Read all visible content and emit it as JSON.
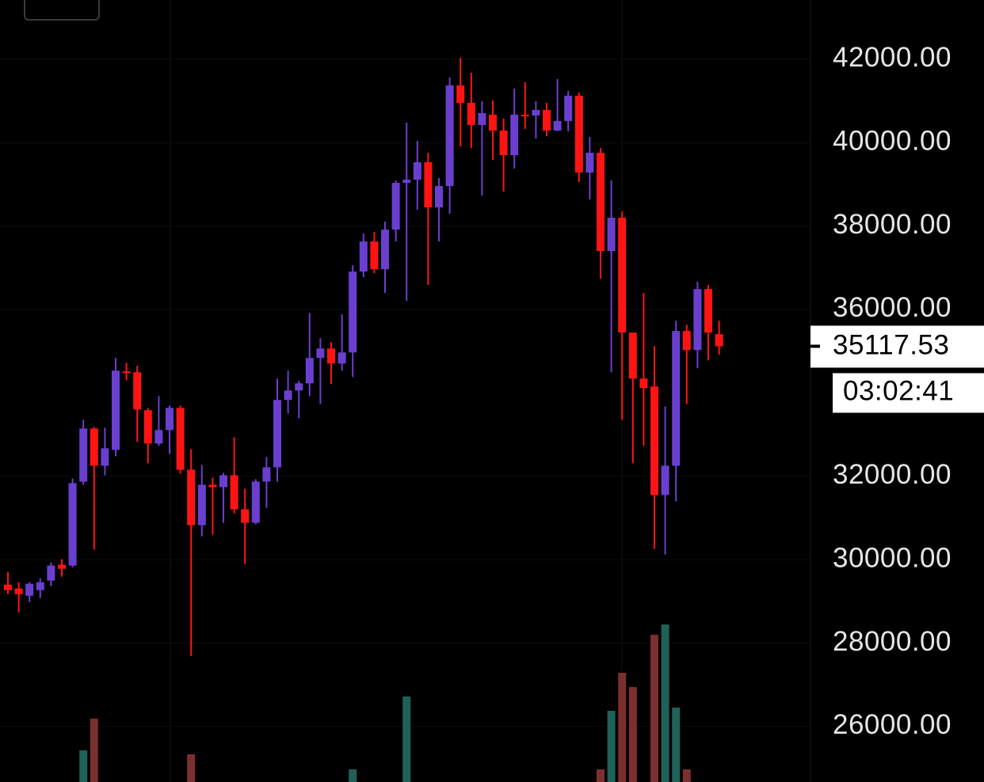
{
  "chart_data": {
    "type": "candlestick",
    "ylim": [
      24670,
      43420
    ],
    "yticks": [
      {
        "value": 26000,
        "label": "26000.00"
      },
      {
        "value": 28000,
        "label": "28000.00"
      },
      {
        "value": 30000,
        "label": "30000.00"
      },
      {
        "value": 32000,
        "label": "32000.00"
      },
      {
        "value": 36000,
        "label": "36000.00"
      },
      {
        "value": 38000,
        "label": "38000.00"
      },
      {
        "value": 40000,
        "label": "40000.00"
      },
      {
        "value": 42000,
        "label": "42000.00"
      }
    ],
    "up_color": "#6a3fcf",
    "down_color": "#ff1414",
    "volume_up_color": "#1f6158",
    "volume_down_color": "#7c2f2f",
    "open": [
      29403,
      29308,
      29137,
      29270,
      29498,
      29878,
      29859,
      31873,
      33146,
      32253,
      32633,
      34514,
      34495,
      33583,
      32785,
      33108,
      33640,
      32158,
      30828,
      31797,
      31740,
      32025,
      31208,
      30885,
      31873,
      32215,
      33830,
      34058,
      34229,
      34837,
      35065,
      34704,
      34970,
      36908,
      37630,
      36965,
      37915,
      39036,
      39112,
      39530,
      38447,
      38960,
      41373,
      40955,
      40423,
      40670,
      40290,
      39701,
      40670,
      40651,
      40784,
      40290,
      40518,
      41126,
      39283,
      39758,
      37402,
      38200,
      35445,
      34343,
      34153,
      31550,
      32253,
      35483,
      35027,
      36490,
      35407
    ],
    "high": [
      29707,
      29460,
      29460,
      29555,
      29935,
      30011,
      31949,
      33355,
      33184,
      33165,
      34837,
      34723,
      34647,
      33640,
      33925,
      33697,
      33697,
      32652,
      32272,
      31968,
      32082,
      32937,
      31702,
      31930,
      32462,
      34343,
      34533,
      34286,
      35920,
      35312,
      35217,
      35882,
      37060,
      37820,
      37858,
      38105,
      39093,
      40480,
      40043,
      39758,
      39150,
      41563,
      42038,
      41677,
      40993,
      41012,
      40575,
      41297,
      41449,
      40993,
      40955,
      41525,
      41240,
      41202,
      40138,
      39872,
      39093,
      38352,
      35445,
      36395,
      35122,
      33678,
      35730,
      35635,
      36661,
      36585,
      35730
    ],
    "low": [
      29175,
      28738,
      28985,
      29080,
      29365,
      29593,
      29821,
      31797,
      30239,
      32025,
      32481,
      34305,
      32823,
      32310,
      32728,
      32538,
      32063,
      27693,
      30562,
      30600,
      30885,
      31113,
      29897,
      30847,
      31246,
      31873,
      33507,
      33393,
      33925,
      33735,
      34210,
      34533,
      34381,
      36775,
      36870,
      36395,
      37630,
      36205,
      38390,
      36585,
      37630,
      38295,
      39910,
      39872,
      38732,
      39587,
      38827,
      39378,
      40328,
      40100,
      40157,
      40271,
      40271,
      39055,
      38637,
      36737,
      34495,
      33355,
      32310,
      32728,
      30258,
      30125,
      31398,
      33735,
      34590,
      34780,
      34913
    ],
    "close": [
      29270,
      29175,
      29422,
      29460,
      29859,
      29783,
      31835,
      33146,
      32253,
      32671,
      34533,
      34495,
      33602,
      32785,
      33108,
      33640,
      32158,
      30828,
      31797,
      31740,
      32025,
      31208,
      30885,
      31873,
      32215,
      33830,
      34058,
      34229,
      34837,
      35065,
      34704,
      34970,
      36908,
      37630,
      36965,
      37915,
      39036,
      39112,
      39530,
      38447,
      38960,
      41373,
      40955,
      40423,
      40708,
      40290,
      39701,
      40670,
      40651,
      40784,
      40290,
      40518,
      41126,
      39283,
      39758,
      37402,
      38200,
      35445,
      34343,
      34115,
      31550,
      32253,
      35483,
      35027,
      36490,
      35445,
      35117.53
    ],
    "volume": [
      null,
      null,
      null,
      null,
      null,
      null,
      null,
      40,
      80,
      null,
      null,
      null,
      null,
      null,
      null,
      null,
      null,
      35,
      null,
      null,
      null,
      null,
      null,
      null,
      null,
      null,
      null,
      null,
      null,
      null,
      null,
      null,
      16,
      null,
      null,
      null,
      null,
      108,
      null,
      null,
      null,
      null,
      null,
      null,
      null,
      null,
      null,
      null,
      null,
      null,
      null,
      null,
      null,
      null,
      null,
      16,
      90,
      138,
      120,
      null,
      186,
      199,
      94,
      16,
      null,
      null,
      null
    ],
    "last_price": 35117.53,
    "countdown": "03:02:41"
  }
}
